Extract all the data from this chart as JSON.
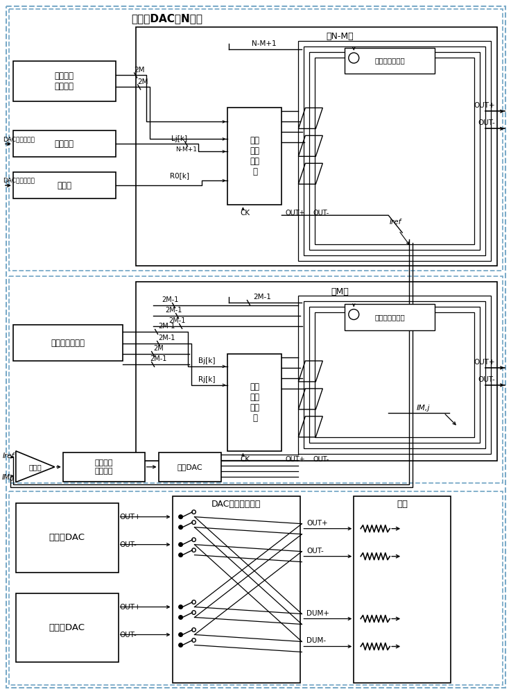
{
  "fig_w": 7.37,
  "fig_h": 10.0,
  "dpi": 100,
  "bg": "#ffffff",
  "lc": "#7aaac8",
  "blk": "#000000",
  "sections": {
    "top_title": "第一路DAC（N位）",
    "low_nm": "低N-M位",
    "high_m": "高M位",
    "dac_out_ctrl": "DAC输出控制逻辑",
    "load": "负载"
  },
  "blocks": {
    "calib_logic": "校正选择\n控制逻辑",
    "delay": "延时模块",
    "decoder": "译码器",
    "latch1": "第一\n复用\n锁存\n器",
    "low_cs": "低位电流源阵列",
    "prng": "伪随机数发生器",
    "latch2": "第二\n复用\n锁存\n器",
    "high_cs": "高位电流源阵列",
    "comparator": "比较器",
    "sar": "逐次逼近\n控制逻辑",
    "calib_dac": "校正DAC",
    "dac1": "第一路DAC",
    "dac2": "第二路DAC"
  },
  "signals": {
    "dac_lo": "DAC低位输入码",
    "dac_hi": "DAC高位输入码",
    "Lj": "Lj[k]",
    "R0": "R0[k]",
    "Bj": "Bj[k]",
    "Rj": "Rj[k]",
    "Iref": "Iref",
    "IMj": "IM,j",
    "NM1": "N-M+1",
    "twoM": "2M",
    "twoM1": "2M-1",
    "CK": "CK",
    "OUTp": "OUT+",
    "OUTm": "OUT-",
    "DUMp": "DUM+",
    "DUMm": "DUM-"
  }
}
